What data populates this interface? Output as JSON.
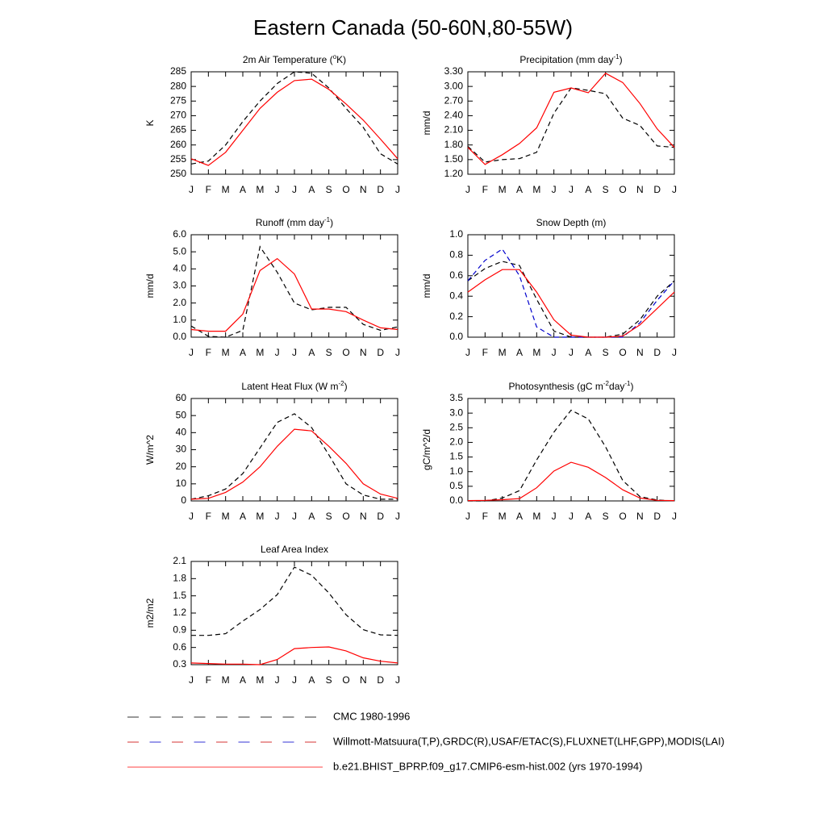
{
  "title": "Eastern Canada (50-60N,80-55W)",
  "legend": [
    {
      "label": "CMC 1980-1996",
      "colors": [
        "#000000"
      ],
      "dashed": true
    },
    {
      "label": "Willmott-Matsuura(T,P),GRDC(R),USAF/ETAC(S),FLUXNET(LHF,GPP),MODIS(LAI)",
      "colors": [
        "#cc0000",
        "#0000cc"
      ],
      "dashed": true
    },
    {
      "label": "b.e21.BHIST_BPRP.f09_g17.CMIP6-esm-hist.002 (yrs 1970-1994)",
      "colors": [
        "#ff0000"
      ],
      "dashed": false
    }
  ],
  "chart_data": [
    {
      "type": "line",
      "title": [
        "2m Air Temperature (",
        "o",
        "K)"
      ],
      "ylabel": "K",
      "categories": [
        "J",
        "F",
        "M",
        "A",
        "M",
        "J",
        "J",
        "A",
        "S",
        "O",
        "N",
        "D",
        "J"
      ],
      "ylim": [
        250,
        285
      ],
      "yticks": [
        250,
        255,
        260,
        265,
        270,
        275,
        280,
        285
      ],
      "series": [
        {
          "color": "#000000",
          "dashed": true,
          "values": [
            253.5,
            254.5,
            260,
            268,
            275,
            281,
            285,
            284.5,
            279.5,
            272.5,
            266,
            257,
            253.5
          ]
        },
        {
          "color": "#ff0000",
          "dashed": false,
          "values": [
            255.3,
            253,
            257.5,
            265,
            272.5,
            278,
            282,
            282.5,
            279,
            274,
            268.5,
            262,
            255.3
          ]
        }
      ]
    },
    {
      "type": "line",
      "title": [
        "Precipitation (mm day",
        "-1",
        ")"
      ],
      "ylabel": "mm/d",
      "categories": [
        "J",
        "F",
        "M",
        "A",
        "M",
        "J",
        "J",
        "A",
        "S",
        "O",
        "N",
        "D",
        "J"
      ],
      "ylim": [
        1.2,
        3.3
      ],
      "yticks": [
        {
          "value": 1.2,
          "label": "1.20"
        },
        {
          "value": 1.5,
          "label": "1.50"
        },
        {
          "value": 1.8,
          "label": "1.80"
        },
        {
          "value": 2.1,
          "label": "2.10"
        },
        {
          "value": 2.4,
          "label": "2.40"
        },
        {
          "value": 2.7,
          "label": "2.70"
        },
        {
          "value": 3.0,
          "label": "3.00"
        },
        {
          "value": 3.3,
          "label": "3.30"
        }
      ],
      "series": [
        {
          "color": "#000000",
          "dashed": true,
          "values": [
            1.77,
            1.45,
            1.5,
            1.52,
            1.65,
            2.45,
            2.97,
            2.92,
            2.85,
            2.35,
            2.2,
            1.78,
            1.75
          ]
        },
        {
          "color": "#ff0000",
          "dashed": false,
          "values": [
            1.75,
            1.4,
            1.6,
            1.83,
            2.15,
            2.88,
            2.97,
            2.87,
            3.27,
            3.08,
            2.65,
            2.13,
            1.75
          ]
        }
      ]
    },
    {
      "type": "line",
      "title": [
        "Runoff (mm day",
        "-1",
        ")"
      ],
      "ylabel": "mm/d",
      "categories": [
        "J",
        "F",
        "M",
        "A",
        "M",
        "J",
        "J",
        "A",
        "S",
        "O",
        "N",
        "D",
        "J"
      ],
      "ylim": [
        0,
        6
      ],
      "yticks": [
        {
          "value": 0,
          "label": "0.0"
        },
        {
          "value": 1,
          "label": "1.0"
        },
        {
          "value": 2,
          "label": "2.0"
        },
        {
          "value": 3,
          "label": "3.0"
        },
        {
          "value": 4,
          "label": "4.0"
        },
        {
          "value": 5,
          "label": "5.0"
        },
        {
          "value": 6,
          "label": "6.0"
        }
      ],
      "series": [
        {
          "color": "#000000",
          "dashed": true,
          "values": [
            0.65,
            0.05,
            0.0,
            0.4,
            5.3,
            3.8,
            2.0,
            1.6,
            1.75,
            1.75,
            0.75,
            0.4,
            0.6
          ]
        },
        {
          "color": "#ff0000",
          "dashed": false,
          "values": [
            0.45,
            0.35,
            0.35,
            1.35,
            3.9,
            4.6,
            3.7,
            1.65,
            1.65,
            1.5,
            1.0,
            0.55,
            0.45
          ]
        }
      ]
    },
    {
      "type": "line",
      "title": [
        "Snow Depth (m)"
      ],
      "ylabel": "mm/d",
      "categories": [
        "J",
        "F",
        "M",
        "A",
        "M",
        "J",
        "J",
        "A",
        "S",
        "O",
        "N",
        "D",
        "J"
      ],
      "ylim": [
        0,
        1
      ],
      "yticks": [
        {
          "value": 0,
          "label": "0.0"
        },
        0.2,
        0.4,
        0.6,
        0.8,
        {
          "value": 1,
          "label": "1.0"
        }
      ],
      "series": [
        {
          "color": "#000000",
          "dashed": true,
          "values": [
            0.55,
            0.67,
            0.74,
            0.7,
            0.37,
            0.06,
            0.0,
            0.0,
            0.0,
            0.03,
            0.17,
            0.4,
            0.55
          ]
        },
        {
          "color": "#0000cc",
          "dashed": true,
          "values": [
            0.55,
            0.75,
            0.86,
            0.6,
            0.1,
            0.0,
            0.0,
            0.0,
            0.0,
            0.0,
            0.14,
            0.36,
            0.55
          ]
        },
        {
          "color": "#ff0000",
          "dashed": false,
          "values": [
            0.44,
            0.56,
            0.66,
            0.66,
            0.44,
            0.17,
            0.02,
            0.0,
            0.0,
            0.01,
            0.12,
            0.28,
            0.44
          ]
        }
      ]
    },
    {
      "type": "line",
      "title": [
        "Latent Heat Flux (W m",
        "-2",
        ")"
      ],
      "ylabel": "W/m^2",
      "categories": [
        "J",
        "F",
        "M",
        "A",
        "M",
        "J",
        "J",
        "A",
        "S",
        "O",
        "N",
        "D",
        "J"
      ],
      "ylim": [
        0,
        60
      ],
      "yticks": [
        0,
        10,
        20,
        30,
        40,
        50,
        60
      ],
      "series": [
        {
          "color": "#000000",
          "dashed": true,
          "values": [
            1,
            3,
            7,
            16,
            31,
            46,
            51,
            43,
            27,
            10,
            3.5,
            1,
            1
          ]
        },
        {
          "color": "#ff0000",
          "dashed": false,
          "values": [
            1,
            1.5,
            5,
            11,
            20,
            32,
            42,
            41,
            32,
            22,
            10,
            4,
            1.5
          ]
        }
      ]
    },
    {
      "type": "line",
      "title": [
        "Photosynthesis (gC m",
        "-2",
        "day",
        "-1",
        ")"
      ],
      "ylabel": "gC/m^2/d",
      "categories": [
        "J",
        "F",
        "M",
        "A",
        "M",
        "J",
        "J",
        "A",
        "S",
        "O",
        "N",
        "D",
        "J"
      ],
      "ylim": [
        0,
        3.5
      ],
      "yticks": [
        {
          "value": 0,
          "label": "0.0"
        },
        0.5,
        {
          "value": 1,
          "label": "1.0"
        },
        1.5,
        {
          "value": 2,
          "label": "2.0"
        },
        2.5,
        {
          "value": 3,
          "label": "3.0"
        },
        3.5
      ],
      "series": [
        {
          "color": "#000000",
          "dashed": true,
          "values": [
            0.0,
            0.0,
            0.1,
            0.35,
            1.4,
            2.35,
            3.1,
            2.8,
            1.85,
            0.7,
            0.15,
            0.03,
            0.0
          ]
        },
        {
          "color": "#ff0000",
          "dashed": false,
          "values": [
            0.01,
            0.02,
            0.04,
            0.08,
            0.45,
            1.02,
            1.32,
            1.15,
            0.8,
            0.38,
            0.1,
            0.02,
            0.01
          ]
        }
      ]
    },
    {
      "type": "line",
      "title": [
        "Leaf Area Index"
      ],
      "ylabel": "m2/m2",
      "categories": [
        "J",
        "F",
        "M",
        "A",
        "M",
        "J",
        "J",
        "A",
        "S",
        "O",
        "N",
        "D",
        "J"
      ],
      "ylim": [
        0.3,
        2.1
      ],
      "yticks": [
        0.3,
        0.6,
        0.9,
        1.2,
        1.5,
        1.8,
        2.1
      ],
      "series": [
        {
          "color": "#000000",
          "dashed": true,
          "values": [
            0.81,
            0.81,
            0.84,
            1.06,
            1.26,
            1.52,
            2.0,
            1.86,
            1.55,
            1.17,
            0.91,
            0.82,
            0.81
          ]
        },
        {
          "color": "#ff0000",
          "dashed": false,
          "values": [
            0.33,
            0.32,
            0.31,
            0.31,
            0.3,
            0.39,
            0.58,
            0.6,
            0.61,
            0.54,
            0.42,
            0.36,
            0.33
          ]
        }
      ]
    }
  ]
}
